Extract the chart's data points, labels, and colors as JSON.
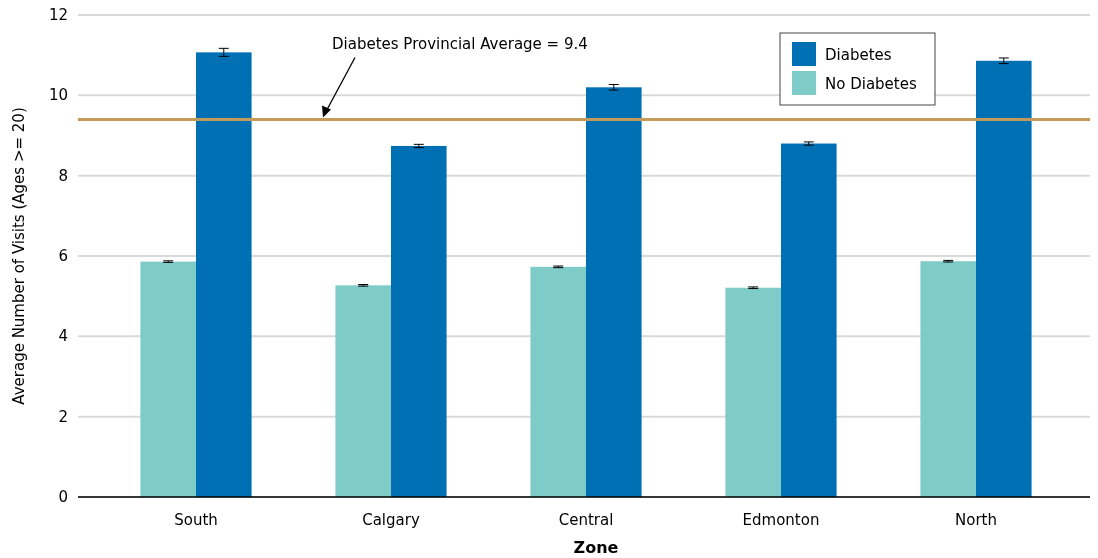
{
  "chart_data": {
    "type": "bar",
    "xlabel": "Zone",
    "ylabel": "Average Number of Visits (Ages >= 20)",
    "categories": [
      "South",
      "Calgary",
      "Central",
      "Edmonton",
      "North"
    ],
    "series": [
      {
        "name": "No Diabetes",
        "color": "#7ecbc7",
        "values": [
          5.86,
          5.27,
          5.73,
          5.21,
          5.87
        ],
        "errors": [
          0.02,
          0.02,
          0.02,
          0.02,
          0.02
        ]
      },
      {
        "name": "Diabetes",
        "color": "#0070b5",
        "values": [
          11.07,
          8.74,
          10.2,
          8.8,
          10.86
        ],
        "errors": [
          0.1,
          0.04,
          0.07,
          0.04,
          0.07
        ]
      }
    ],
    "ylim": [
      0,
      12
    ],
    "yticks": [
      0,
      2,
      4,
      6,
      8,
      10,
      12
    ],
    "grid": "y",
    "legend": "top right",
    "ref_lines": [
      {
        "axis": "y",
        "value": 9.4,
        "label": "Diabetes Provincial Average = 9.4",
        "color": "#c49a5a"
      }
    ]
  }
}
